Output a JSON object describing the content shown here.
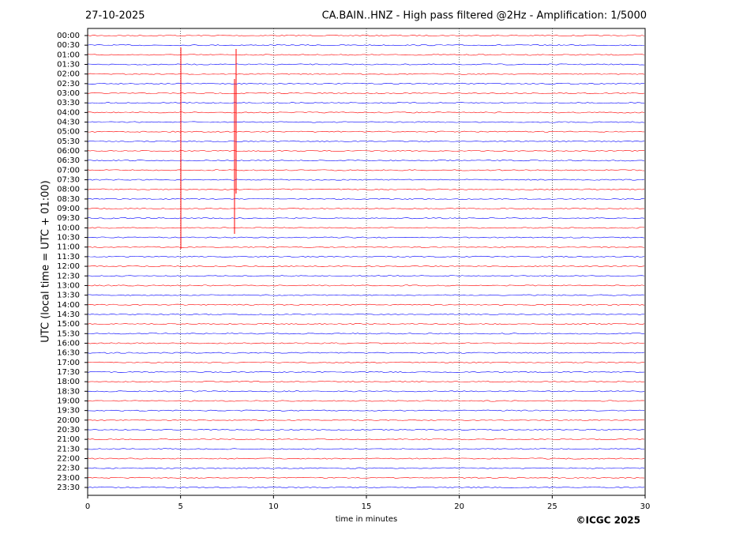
{
  "chart_data": {
    "type": "helicorder",
    "date": "27-10-2025",
    "title": "CA.BAIN..HNZ - High pass filtered @2Hz - Amplification: 1/5000",
    "xlabel": "time in minutes",
    "ylabel": "UTC (local time = UTC + 01:00)",
    "credit": "©ICGC 2025",
    "categories": [
      "00:00",
      "00:30",
      "01:00",
      "01:30",
      "02:00",
      "02:30",
      "03:00",
      "03:30",
      "04:00",
      "04:30",
      "05:00",
      "05:30",
      "06:00",
      "06:30",
      "07:00",
      "07:30",
      "08:00",
      "08:30",
      "09:00",
      "09:30",
      "10:00",
      "10:30",
      "11:00",
      "11:30",
      "12:00",
      "12:30",
      "13:00",
      "13:30",
      "14:00",
      "14:30",
      "15:00",
      "15:30",
      "16:00",
      "16:30",
      "17:00",
      "17:30",
      "18:00",
      "18:30",
      "19:00",
      "19:30",
      "20:00",
      "20:30",
      "21:00",
      "21:30",
      "22:00",
      "22:30",
      "23:00",
      "23:30"
    ],
    "colors": [
      "#ff0000",
      "#0000ff"
    ],
    "xlim": [
      0,
      30
    ],
    "xticks": [
      0,
      5,
      10,
      15,
      20,
      25,
      30
    ],
    "grid": true
  }
}
